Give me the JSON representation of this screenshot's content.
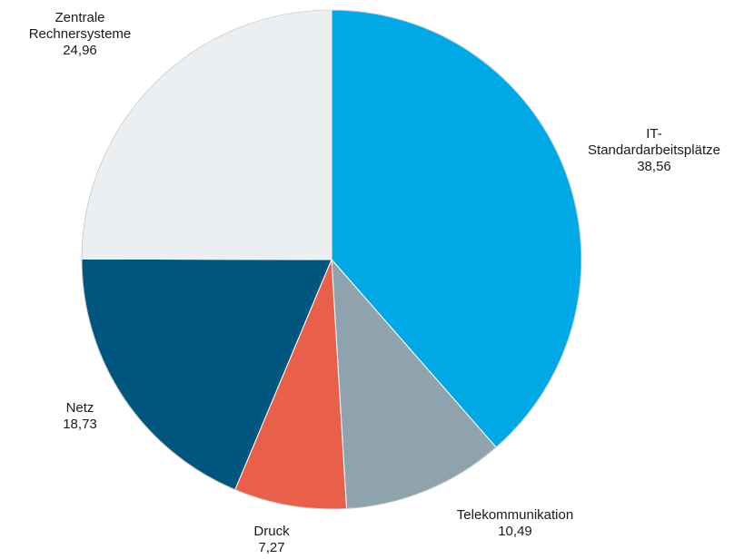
{
  "chart_data": {
    "type": "pie",
    "start_angle_deg": 0,
    "direction": "clockwise",
    "slices": [
      {
        "label": [
          "IT-",
          "Standardarbeitsplätze"
        ],
        "value": 38.56,
        "value_text": "38,56",
        "color": "#00a8e6"
      },
      {
        "label": [
          "Telekommunikation"
        ],
        "value": 10.49,
        "value_text": "10,49",
        "color": "#8ea3ae"
      },
      {
        "label": [
          "Druck"
        ],
        "value": 7.27,
        "value_text": "7,27",
        "color": "#e8604a"
      },
      {
        "label": [
          "Netz"
        ],
        "value": 18.73,
        "value_text": "18,73",
        "color": "#00567e"
      },
      {
        "label": [
          "Zentrale",
          "Rechnersysteme"
        ],
        "value": 24.96,
        "value_text": "24,96",
        "color": "#eceff2"
      }
    ]
  }
}
